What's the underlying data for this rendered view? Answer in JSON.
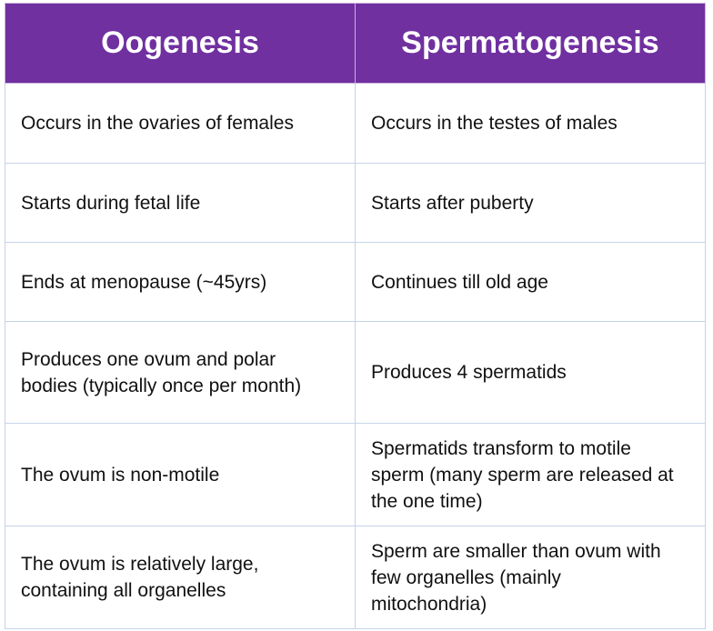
{
  "table": {
    "header": [
      "Oogenesis",
      "Spermatogenesis"
    ],
    "rows": [
      [
        "Occurs in the ovaries of females",
        "Occurs in the testes of males"
      ],
      [
        "Starts during fetal life",
        "Starts after puberty"
      ],
      [
        "Ends at menopause (~45yrs)",
        "Continues till old age"
      ],
      [
        "Produces one ovum and polar bodies (typically once per month)",
        "Produces 4 spermatids"
      ],
      [
        "The ovum is non-motile",
        "Spermatids transform to motile sperm (many sperm are released at the one time)"
      ],
      [
        "The ovum is relatively large, containing all organelles",
        "Sperm are smaller than ovum with few organelles (mainly mitochondria)"
      ]
    ]
  }
}
